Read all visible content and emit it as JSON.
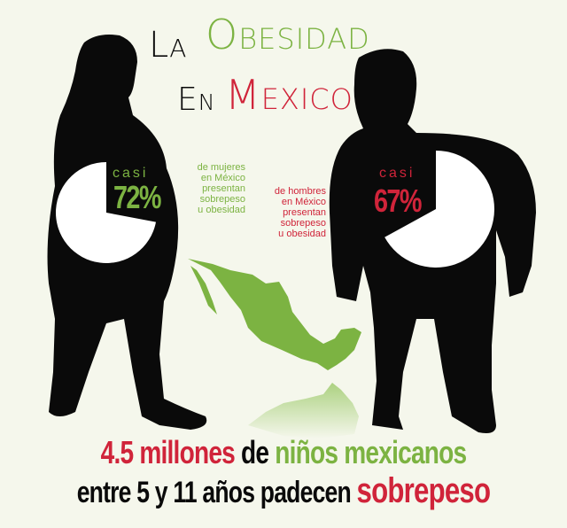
{
  "title": {
    "line1_a": "La",
    "line1_b": "Obesidad",
    "line2_a": "En",
    "line2_b": "Mexico"
  },
  "women": {
    "prefix": "casi",
    "percent_label": "72%",
    "percent": 72,
    "description": [
      "de mujeres",
      "en México",
      "presentan",
      "sobrepeso",
      "u obesidad"
    ]
  },
  "men": {
    "prefix": "casi",
    "percent_label": "67%",
    "percent": 67,
    "description": [
      "de hombres",
      "en México",
      "presentan",
      "sobrepeso",
      "u obesidad"
    ]
  },
  "children": {
    "line1": [
      "4.5 millones",
      " de ",
      "niños mexicanos"
    ],
    "line2": [
      "entre 5 y 11 años padecen ",
      "sobrepeso"
    ]
  },
  "colors": {
    "green": "#7cb342",
    "red": "#d0243a",
    "black": "#0a0a0a",
    "background": "#f5f7ec"
  },
  "icons": [
    "woman-silhouette",
    "man-silhouette",
    "mexico-map"
  ]
}
